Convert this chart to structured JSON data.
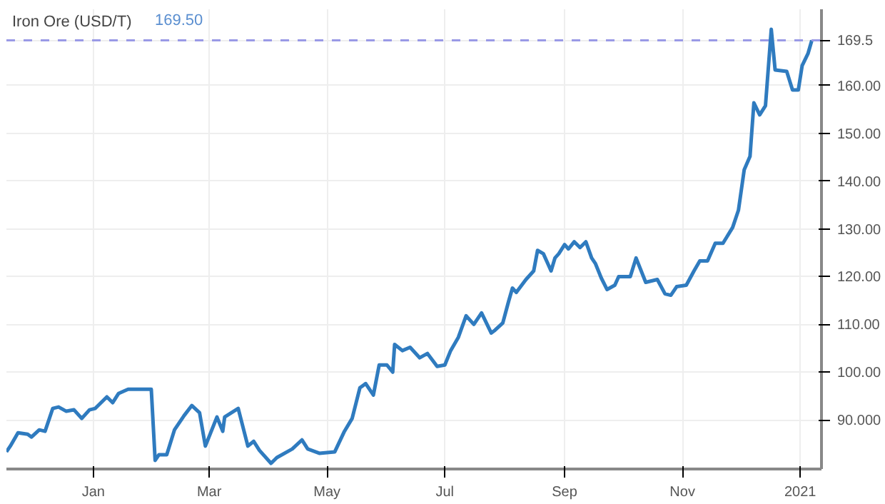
{
  "chart_data": {
    "type": "line",
    "title": "Iron Ore (USD/T)",
    "subtitle": "169.50",
    "x": [
      "2019-11-17",
      "2019-11-19",
      "2019-11-23",
      "2019-11-28",
      "2019-11-30",
      "2019-12-04",
      "2019-12-07",
      "2019-12-11",
      "2019-12-14",
      "2019-12-18",
      "2019-12-22",
      "2019-12-26",
      "2019-12-30",
      "2020-01-02",
      "2020-01-08",
      "2020-01-11",
      "2020-01-14",
      "2020-01-19",
      "2020-01-31",
      "2020-02-02",
      "2020-02-04",
      "2020-02-08",
      "2020-02-12",
      "2020-02-17",
      "2020-02-21",
      "2020-02-25",
      "2020-02-28",
      "2020-03-05",
      "2020-03-08",
      "2020-03-09",
      "2020-03-16",
      "2020-03-21",
      "2020-03-24",
      "2020-03-27",
      "2020-04-02",
      "2020-04-05",
      "2020-04-13",
      "2020-04-18",
      "2020-04-21",
      "2020-04-27",
      "2020-05-05",
      "2020-05-10",
      "2020-05-14",
      "2020-05-18",
      "2020-05-21",
      "2020-05-25",
      "2020-05-28",
      "2020-06-01",
      "2020-06-04",
      "2020-06-05",
      "2020-06-09",
      "2020-06-13",
      "2020-06-18",
      "2020-06-22",
      "2020-06-27",
      "2020-07-01",
      "2020-07-04",
      "2020-07-08",
      "2020-07-12",
      "2020-07-16",
      "2020-07-20",
      "2020-07-25",
      "2020-07-27",
      "2020-07-31",
      "2020-08-03",
      "2020-08-05",
      "2020-08-07",
      "2020-08-12",
      "2020-08-16",
      "2020-08-18",
      "2020-08-21",
      "2020-08-25",
      "2020-08-27",
      "2020-08-29",
      "2020-09-01",
      "2020-09-03",
      "2020-09-06",
      "2020-09-09",
      "2020-09-12",
      "2020-09-15",
      "2020-09-17",
      "2020-09-20",
      "2020-09-23",
      "2020-09-27",
      "2020-09-29",
      "2020-10-05",
      "2020-10-08",
      "2020-10-13",
      "2020-10-19",
      "2020-10-23",
      "2020-10-26",
      "2020-10-29",
      "2020-11-03",
      "2020-11-07",
      "2020-11-10",
      "2020-11-14",
      "2020-11-18",
      "2020-11-22",
      "2020-11-27",
      "2020-11-30",
      "2020-12-03",
      "2020-12-06",
      "2020-12-08",
      "2020-12-11",
      "2020-12-14",
      "2020-12-17",
      "2020-12-19",
      "2020-12-25",
      "2020-12-28",
      "2020-12-31",
      "2021-01-02",
      "2021-01-05",
      "2021-01-07"
    ],
    "series": [
      {
        "color": "#2f7bbf",
        "values": [
          83.3,
          84.5,
          87.3,
          87.0,
          86.4,
          87.9,
          87.6,
          92.4,
          92.7,
          91.8,
          92.1,
          90.3,
          92.1,
          92.4,
          94.8,
          93.6,
          95.5,
          96.4,
          96.4,
          81.5,
          82.7,
          82.7,
          87.9,
          90.9,
          93.0,
          91.5,
          84.5,
          90.6,
          87.6,
          90.6,
          92.4,
          84.5,
          85.5,
          83.6,
          80.9,
          82.1,
          83.9,
          85.8,
          83.9,
          83.0,
          83.3,
          87.6,
          90.3,
          96.7,
          97.6,
          95.2,
          101.5,
          101.5,
          100.0,
          105.8,
          104.5,
          105.2,
          103.0,
          103.9,
          101.2,
          101.5,
          104.5,
          107.3,
          111.8,
          110.0,
          112.4,
          108.2,
          108.8,
          110.3,
          114.8,
          117.6,
          116.7,
          119.4,
          121.2,
          125.5,
          124.8,
          121.2,
          123.9,
          124.8,
          126.7,
          125.8,
          127.3,
          126.1,
          127.3,
          123.9,
          122.7,
          119.7,
          117.3,
          118.2,
          120.0,
          120.0,
          123.9,
          118.8,
          119.4,
          116.4,
          116.1,
          117.9,
          118.2,
          121.2,
          123.3,
          123.3,
          127.0,
          127.0,
          130.3,
          133.9,
          142.4,
          145.2,
          156.4,
          153.9,
          155.8,
          171.8,
          163.3,
          163.0,
          159.1,
          159.1,
          164.2,
          166.7,
          169.5
        ]
      }
    ],
    "xlim": [
      "2019-11-17",
      "2021-01-12"
    ],
    "xticks": [
      {
        "value": "2020-01-01",
        "label": "Jan"
      },
      {
        "value": "2020-03-01",
        "label": "Mar"
      },
      {
        "value": "2020-05-01",
        "label": "May"
      },
      {
        "value": "2020-07-01",
        "label": "Jul"
      },
      {
        "value": "2020-09-01",
        "label": "Sep"
      },
      {
        "value": "2020-11-01",
        "label": "Nov"
      },
      {
        "value": "2021-01-01",
        "label": "2021"
      }
    ],
    "ylim": [
      79.7,
      176
    ],
    "yticks": [
      {
        "value": 90,
        "label": "90.000"
      },
      {
        "value": 100,
        "label": "100.00"
      },
      {
        "value": 110,
        "label": "110.00"
      },
      {
        "value": 120,
        "label": "120.00"
      },
      {
        "value": 130,
        "label": "130.00"
      },
      {
        "value": 140,
        "label": "140.00"
      },
      {
        "value": 150,
        "label": "150.00"
      },
      {
        "value": 160,
        "label": "160.00"
      }
    ],
    "ref_lines": [
      {
        "axis": "y",
        "value": 169.5,
        "label": "169.5",
        "color": "#9a9ae6",
        "line_style": "dashed"
      }
    ],
    "grid": true,
    "line_style": "solid",
    "marker": "none"
  }
}
